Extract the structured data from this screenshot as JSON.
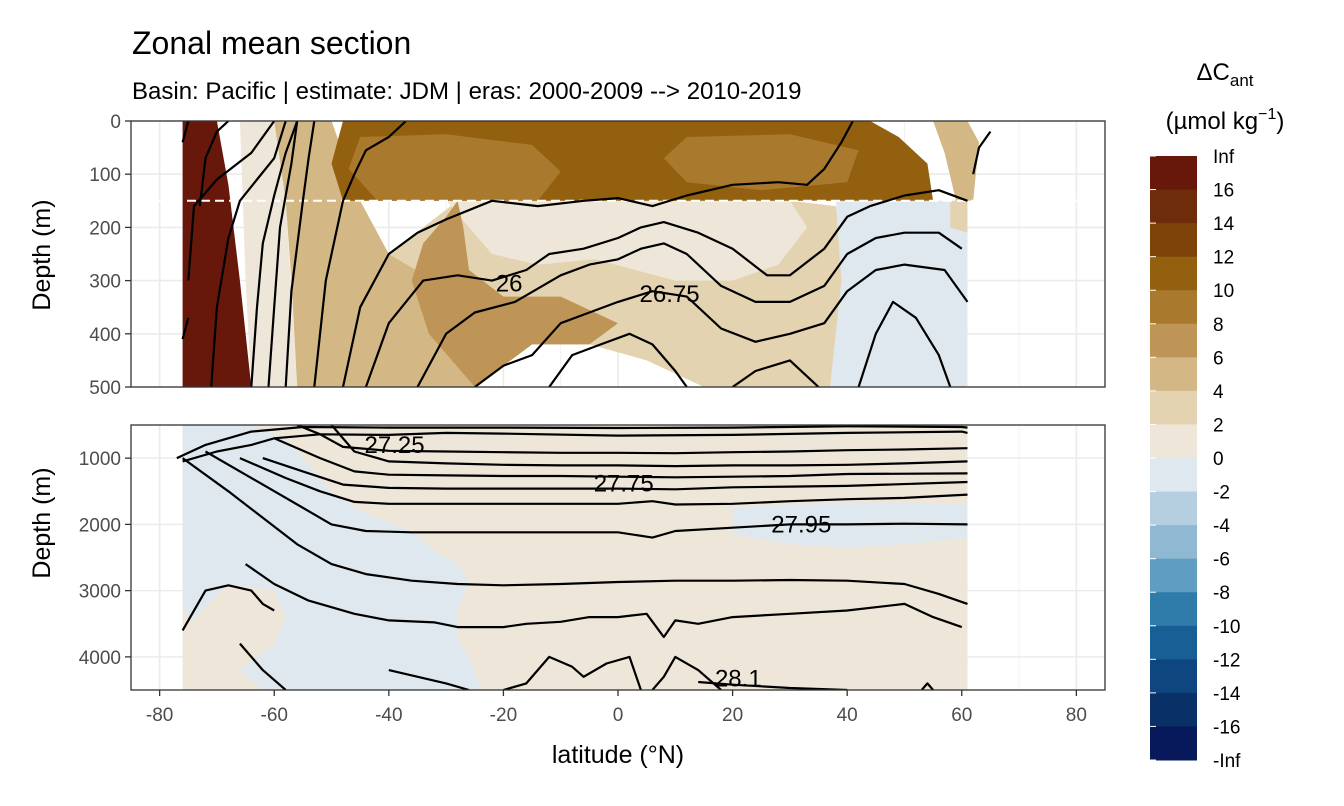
{
  "chart_data": {
    "type": "heatmap",
    "title": "Zonal mean section",
    "subtitle": "Basin: Pacific | estimate: JDM  | eras: 2000-2009 --> 2010-2019",
    "xlabel": "latitude (°N)",
    "ylabel": "Depth (m)",
    "xlim": [
      -85,
      85
    ],
    "x_ticks": [
      -80,
      -60,
      -40,
      -20,
      0,
      20,
      40,
      60,
      80
    ],
    "x_tick_labels": [
      "-80",
      "-60",
      "-40",
      "-20",
      "0",
      "20",
      "40",
      "60",
      "80"
    ],
    "data_lat_range": [
      -76,
      61
    ],
    "grid": true,
    "panels": [
      {
        "name": "upper",
        "ylim": [
          0,
          500
        ],
        "y_reversed": true,
        "y_ticks": [
          0,
          100,
          200,
          300,
          400,
          500
        ],
        "y_tick_labels": [
          "0",
          "100",
          "200",
          "300",
          "400",
          "500"
        ],
        "reference_line_depth": 150,
        "contour_labels": [
          {
            "text": "26",
            "lat": -19,
            "depth": 305
          },
          {
            "text": "26.75",
            "lat": 9,
            "depth": 325
          }
        ],
        "regions": [
          {
            "lat": [
              -46,
              44
            ],
            "depth": [
              0,
              150
            ],
            "band": "8 - 10",
            "note": "surface maximum"
          },
          {
            "lat": [
              -58,
              -25
            ],
            "depth": [
              150,
              500
            ],
            "band": "4 - 6"
          },
          {
            "lat": [
              -10,
              30
            ],
            "depth": [
              150,
              300
            ],
            "band": "0 - 2"
          },
          {
            "lat": [
              40,
              61
            ],
            "depth": [
              150,
              500
            ],
            "band": "-2 - 0"
          },
          {
            "lat": [
              -76,
              -62
            ],
            "depth": [
              0,
              500
            ],
            "band": "-2 - 0"
          }
        ]
      },
      {
        "name": "lower",
        "ylim": [
          500,
          4500
        ],
        "y_reversed": true,
        "y_ticks": [
          1000,
          2000,
          3000,
          4000
        ],
        "y_tick_labels": [
          "1000",
          "2000",
          "3000",
          "4000"
        ],
        "contour_labels": [
          {
            "text": "27.25",
            "lat": -39,
            "depth": 800
          },
          {
            "text": "27.75",
            "lat": 1,
            "depth": 1380
          },
          {
            "text": "27.95",
            "lat": 32,
            "depth": 2000
          },
          {
            "text": "28.1",
            "lat": 21,
            "depth": 4330
          }
        ],
        "regions": [
          {
            "lat": [
              -60,
              61
            ],
            "depth": [
              500,
              1700
            ],
            "band": "0 - 2"
          },
          {
            "lat": [
              -76,
              -55
            ],
            "depth": [
              500,
              3200
            ],
            "band": "-2 - 0"
          },
          {
            "lat": [
              20,
              55
            ],
            "depth": [
              1700,
              2500
            ],
            "band": "-2 - 0"
          },
          {
            "lat": [
              -60,
              -25
            ],
            "depth": [
              2700,
              4500
            ],
            "band": "-2 - 0"
          },
          {
            "lat": [
              -25,
              61
            ],
            "depth": [
              2200,
              4500
            ],
            "band": "0 - 2"
          }
        ]
      }
    ],
    "legend": {
      "title_main": "ΔC",
      "title_sub": "ant",
      "units": "(µmol kg",
      "units_sup": "−1",
      "units_close": ")",
      "placement": "right",
      "labels": [
        "Inf",
        "16",
        "14",
        "12",
        "10",
        "8",
        "6",
        "4",
        "2",
        "0",
        "-2",
        "-4",
        "-6",
        "-8",
        "-10",
        "-12",
        "-14",
        "-16",
        "-Inf"
      ],
      "bin_colors": [
        "#67180a",
        "#6f2c0a",
        "#7e4308",
        "#93600f",
        "#a9792e",
        "#bf9557",
        "#d3b885",
        "#e4d3b1",
        "#eee7d9",
        "#dfe8ee",
        "#b5cfe1",
        "#8fb9d2",
        "#5f9ec2",
        "#2f7cab",
        "#185f95",
        "#0e477f",
        "#0a3068",
        "#07195a"
      ]
    }
  }
}
